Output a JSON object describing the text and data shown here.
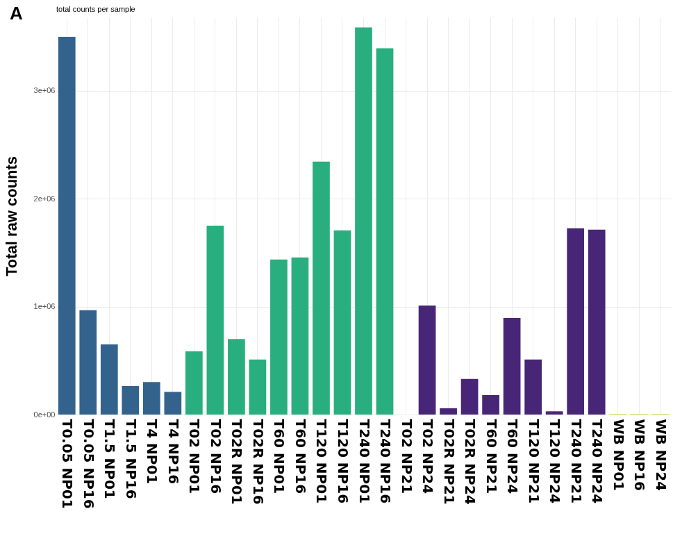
{
  "chart_data": {
    "type": "bar",
    "title": "total counts per sample",
    "ylabel": "Total raw counts",
    "annotations": [
      "A"
    ],
    "categories": [
      "T0.05 NP01",
      "T0.05 NP16",
      "T1.5 NP01",
      "T1.5 NP16",
      "T4 NP01",
      "T4 NP16",
      "T02 NP01",
      "T02 NP16",
      "T02R NP01",
      "T02R NP16",
      "T60 NP01",
      "T60 NP16",
      "T120 NP01",
      "T120 NP16",
      "T240 NP01",
      "T240 NP16",
      "T02 NP21",
      "T02 NP24",
      "T02R NP21",
      "T02R NP24",
      "T60 NP21",
      "T60 NP24",
      "T120 NP21",
      "T120 NP24",
      "T240 NP21",
      "T240 NP24",
      "WB NP01",
      "WB NP16",
      "WB NP24"
    ],
    "values": [
      3500000,
      966000,
      650000,
      264000,
      300000,
      210000,
      586000,
      1750000,
      700000,
      510000,
      1436000,
      1455000,
      2344000,
      1706000,
      3587000,
      3393000,
      0,
      1010000,
      58000,
      330000,
      180000,
      895000,
      510000,
      30000,
      1726000,
      1713000,
      5000,
      5000,
      5000
    ],
    "colors": [
      "#33638d",
      "#33638d",
      "#33638d",
      "#33638d",
      "#33638d",
      "#33638d",
      "#29af7f",
      "#29af7f",
      "#29af7f",
      "#29af7f",
      "#29af7f",
      "#29af7f",
      "#29af7f",
      "#29af7f",
      "#29af7f",
      "#29af7f",
      "#29af7f",
      "#482677",
      "#482677",
      "#482677",
      "#482677",
      "#482677",
      "#482677",
      "#482677",
      "#482677",
      "#482677",
      "#c7e020",
      "#c7e020",
      "#c7e020"
    ],
    "ylim": [
      0,
      3680000
    ],
    "yticks": [
      {
        "value": 0,
        "label": "0e+00"
      },
      {
        "value": 1000000,
        "label": "1e+06"
      },
      {
        "value": 2000000,
        "label": "2e+06"
      },
      {
        "value": 3000000,
        "label": "3e+06"
      }
    ],
    "grid": true
  }
}
